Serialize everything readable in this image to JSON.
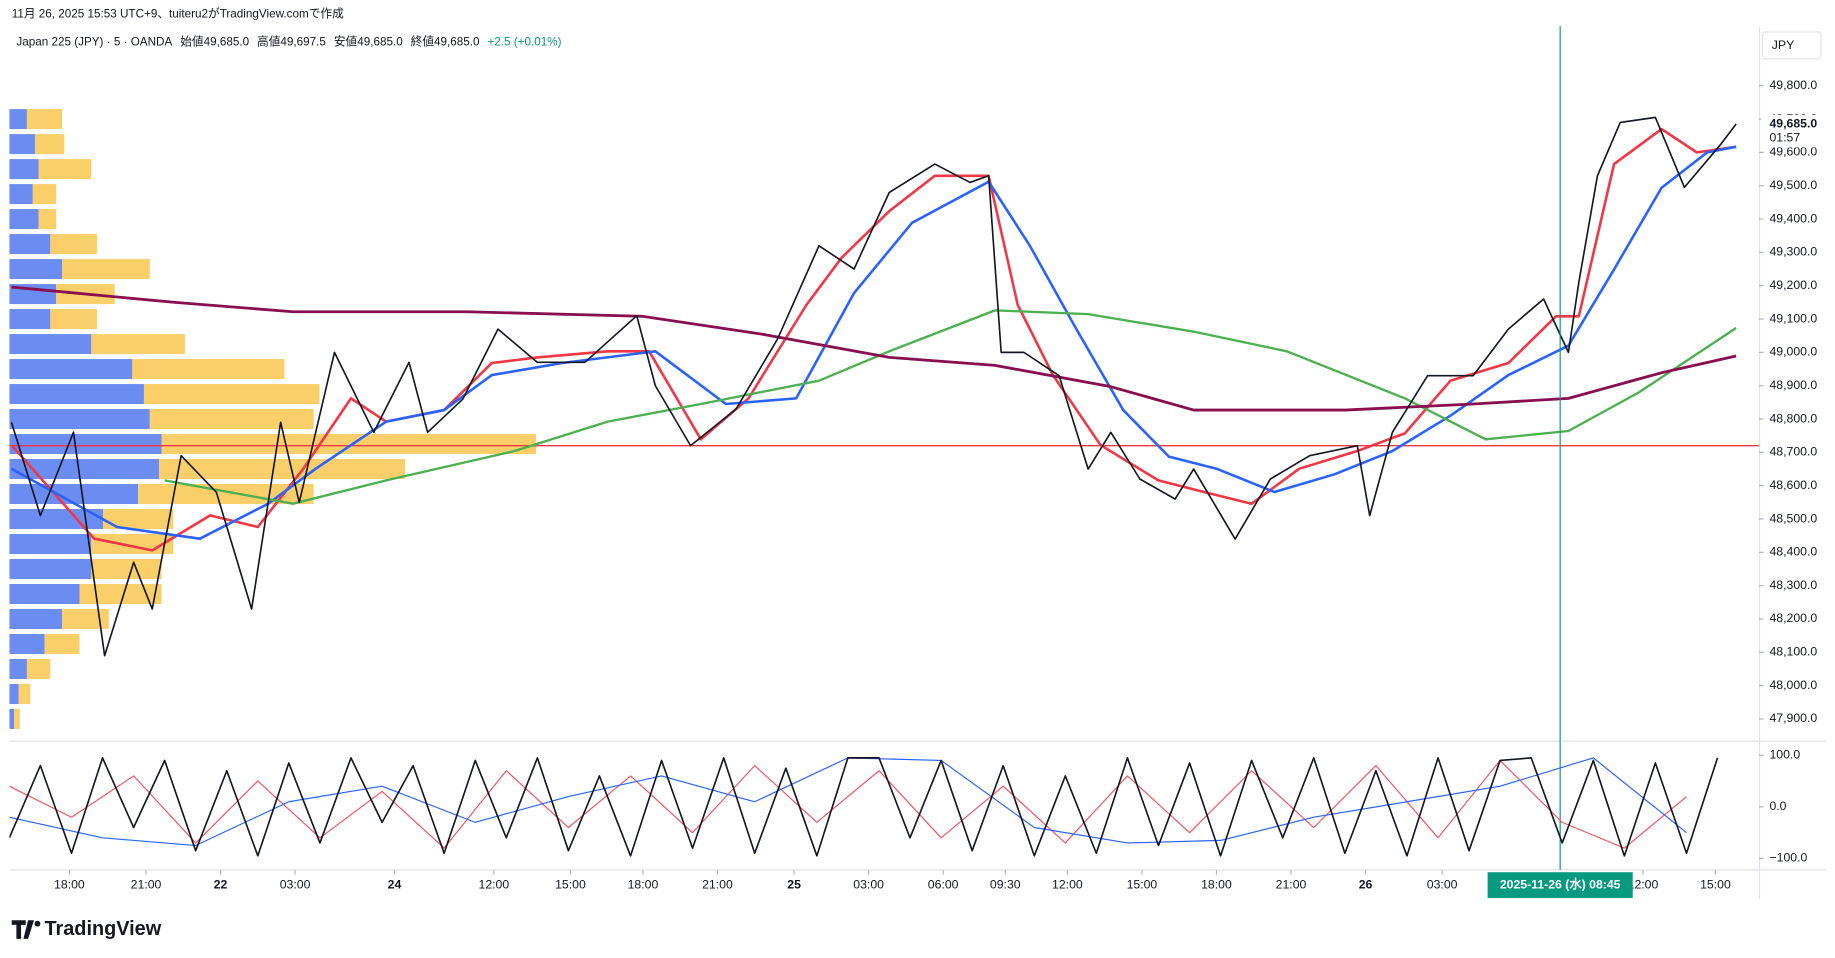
{
  "header": {
    "created": "11月 26, 2025 15:53 UTC+9、tuiteru2がTradingView.comで作成",
    "symbol": "Japan 225 (JPY) · 5 · OANDA",
    "ohlc": [
      "始値49,685.0",
      "高値49,697.5",
      "安値49,685.0",
      "終値49,685.0"
    ],
    "change": "+2.5 (+0.01%)"
  },
  "currency": "JPY",
  "logo": "TradingView",
  "chart_data": [
    {
      "type": "line",
      "xlim": [
        0,
        845
      ],
      "ylim": [
        47837,
        49979
      ],
      "xticks": [
        {
          "value": 29,
          "label": "18:00"
        },
        {
          "value": 66,
          "label": "21:00"
        },
        {
          "value": 102,
          "label": "22"
        },
        {
          "value": 138,
          "label": "03:00"
        },
        {
          "value": 186,
          "label": "24"
        },
        {
          "value": 234,
          "label": "12:00"
        },
        {
          "value": 271,
          "label": "15:00"
        },
        {
          "value": 306,
          "label": "18:00"
        },
        {
          "value": 342,
          "label": "21:00"
        },
        {
          "value": 379,
          "label": "25"
        },
        {
          "value": 415,
          "label": "03:00"
        },
        {
          "value": 451,
          "label": "06:00"
        },
        {
          "value": 481,
          "label": "09:30"
        },
        {
          "value": 511,
          "label": "12:00"
        },
        {
          "value": 547,
          "label": "15:00"
        },
        {
          "value": 583,
          "label": "18:00"
        },
        {
          "value": 619,
          "label": "21:00"
        },
        {
          "value": 655,
          "label": "26"
        },
        {
          "value": 692,
          "label": "03:00"
        },
        {
          "value": 789,
          "label": "12:00"
        },
        {
          "value": 824,
          "label": "15:00"
        }
      ],
      "yticks": [
        {
          "value": 47900,
          "label": "47,900.0"
        },
        {
          "value": 48000,
          "label": "48,000.0"
        },
        {
          "value": 48100,
          "label": "48,100.0"
        },
        {
          "value": 48200,
          "label": "48,200.0"
        },
        {
          "value": 48300,
          "label": "48,300.0"
        },
        {
          "value": 48400,
          "label": "48,400.0"
        },
        {
          "value": 48500,
          "label": "48,500.0"
        },
        {
          "value": 48600,
          "label": "48,600.0"
        },
        {
          "value": 48700,
          "label": "48,700.0"
        },
        {
          "value": 48800,
          "label": "48,800.0"
        },
        {
          "value": 48900,
          "label": "48,900.0"
        },
        {
          "value": 49000,
          "label": "49,000.0"
        },
        {
          "value": 49100,
          "label": "49,100.0"
        },
        {
          "value": 49200,
          "label": "49,200.0"
        },
        {
          "value": 49300,
          "label": "49,300.0"
        },
        {
          "value": 49400,
          "label": "49,400.0"
        },
        {
          "value": 49500,
          "label": "49,500.0"
        },
        {
          "value": 49600,
          "label": "49,600.0"
        },
        {
          "value": 49700,
          "label": "49,700.0"
        },
        {
          "value": 49800,
          "label": "49,800.0"
        }
      ],
      "series": [
        {
          "color": "#f23645",
          "width": 2.2,
          "x": [
            1,
            41,
            69,
            97,
            120,
            142,
            165,
            182,
            210,
            233,
            255,
            289,
            309,
            334,
            357,
            385,
            402,
            425,
            447,
            473,
            487,
            504,
            527,
            555,
            577,
            600,
            623,
            651,
            674,
            696,
            724,
            747,
            758,
            775,
            798,
            815,
            834
          ],
          "values": [
            48722,
            48441,
            48406,
            48511,
            48476,
            48651,
            48862,
            48792,
            48827,
            48968,
            48985,
            49003,
            49003,
            48739,
            48862,
            49143,
            49284,
            49424,
            49530,
            49530,
            49143,
            48932,
            48722,
            48616,
            48581,
            48546,
            48651,
            48704,
            48757,
            48915,
            48968,
            49108,
            49108,
            49565,
            49670,
            49600,
            49617
          ]
        },
        {
          "color": "#2962ff",
          "width": 2.2,
          "x": [
            1,
            52,
            92,
            125,
            148,
            182,
            210,
            233,
            267,
            312,
            346,
            380,
            408,
            436,
            473,
            493,
            515,
            538,
            560,
            583,
            611,
            640,
            668,
            696,
            724,
            753,
            775,
            798,
            820,
            834
          ],
          "values": [
            48651,
            48476,
            48441,
            48546,
            48651,
            48792,
            48827,
            48932,
            48968,
            49003,
            48845,
            48862,
            49178,
            49389,
            49512,
            49319,
            49073,
            48827,
            48687,
            48651,
            48581,
            48634,
            48704,
            48810,
            48932,
            49020,
            49249,
            49494,
            49600,
            49617
          ]
        },
        {
          "color": "#4caf50",
          "width": 2,
          "x": [
            75,
            137,
            182,
            244,
            289,
            334,
            391,
            425,
            476,
            521,
            572,
            617,
            674,
            713,
            753,
            787,
            834
          ],
          "values": [
            48616,
            48546,
            48616,
            48704,
            48792,
            48845,
            48915,
            49003,
            49126,
            49115,
            49062,
            49003,
            48862,
            48739,
            48764,
            48880,
            49073
          ]
        },
        {
          "color": "#880e4f",
          "width": 2.4,
          "x": [
            1,
            80,
            137,
            221,
            306,
            363,
            425,
            476,
            532,
            572,
            645,
            707,
            753,
            798,
            834
          ],
          "values": [
            49196,
            49150,
            49122,
            49122,
            49108,
            49055,
            48985,
            48961,
            48897,
            48827,
            48827,
            48845,
            48862,
            48939,
            48989
          ]
        },
        {
          "color": "#131722",
          "width": 1.4,
          "x": [
            1,
            15,
            31,
            46,
            60,
            69,
            83,
            100,
            117,
            131,
            140,
            157,
            176,
            193,
            202,
            219,
            236,
            255,
            278,
            303,
            312,
            329,
            351,
            371,
            391,
            408,
            425,
            447,
            464,
            473,
            479,
            490,
            507,
            521,
            532,
            546,
            563,
            572,
            592,
            609,
            628,
            651,
            657,
            668,
            685,
            707,
            724,
            741,
            753,
            758,
            767,
            778,
            795,
            809,
            826,
            834
          ],
          "values": [
            48790,
            48510,
            48760,
            48090,
            48370,
            48230,
            48690,
            48580,
            48230,
            48790,
            48550,
            49000,
            48760,
            48970,
            48760,
            48860,
            49070,
            48970,
            48970,
            49110,
            48900,
            48720,
            48830,
            49040,
            49320,
            49250,
            49480,
            49565,
            49510,
            49530,
            49000,
            49000,
            48930,
            48650,
            48760,
            48620,
            48560,
            48650,
            48440,
            48620,
            48690,
            48720,
            48510,
            48760,
            48930,
            48930,
            49070,
            49160,
            49000,
            49210,
            49530,
            49690,
            49705,
            49495,
            49620,
            49685
          ]
        }
      ],
      "hline": {
        "value": 48720,
        "color": "#f23645"
      },
      "last_price": {
        "value": 49685,
        "label": "49,685.0",
        "countdown": "01:57"
      },
      "crosshair": {
        "x": 749,
        "label": "2025-11-26 (水)  08:45",
        "color": "#089981"
      },
      "volume_profile": {
        "xlim": [
          0,
          500
        ],
        "levels": [
          49700,
          49625,
          49550,
          49475,
          49400,
          49325,
          49250,
          49175,
          49100,
          49025,
          48950,
          48875,
          48800,
          48725,
          48650,
          48575,
          48500,
          48425,
          48350,
          48275,
          48200,
          48125,
          48050,
          47975,
          47900
        ],
        "up": {
          "color": "#5b7ff0",
          "values": [
            15,
            22,
            25,
            20,
            25,
            35,
            45,
            40,
            35,
            70,
            105,
            115,
            120,
            130,
            128,
            110,
            80,
            70,
            70,
            60,
            45,
            30,
            15,
            8,
            4
          ]
        },
        "down": {
          "color": "#f9c74f",
          "values": [
            30,
            25,
            45,
            20,
            15,
            40,
            75,
            50,
            40,
            80,
            130,
            150,
            140,
            320,
            210,
            150,
            60,
            70,
            60,
            70,
            40,
            30,
            20,
            10,
            5
          ]
        }
      }
    },
    {
      "type": "line",
      "xlim": [
        0,
        845
      ],
      "ylim": [
        -120,
        123
      ],
      "yticks": [
        {
          "value": 100,
          "label": "100.0"
        },
        {
          "value": 0,
          "label": "0.0"
        },
        {
          "value": -100,
          "label": "−100.0"
        }
      ],
      "series": [
        {
          "color": "#f7525f",
          "width": 1,
          "x": [
            0,
            30,
            60,
            90,
            120,
            150,
            180,
            210,
            240,
            270,
            300,
            330,
            360,
            390,
            420,
            450,
            480,
            510,
            540,
            570,
            600,
            630,
            660,
            690,
            720,
            750,
            780,
            810
          ],
          "values": [
            40,
            -20,
            60,
            -70,
            50,
            -60,
            30,
            -80,
            70,
            -40,
            60,
            -50,
            80,
            -30,
            70,
            -60,
            40,
            -70,
            60,
            -50,
            70,
            -40,
            80,
            -60,
            90,
            -30,
            -80,
            20
          ]
        },
        {
          "color": "#2962ff",
          "width": 1,
          "x": [
            0,
            45,
            90,
            135,
            180,
            225,
            270,
            315,
            360,
            405,
            450,
            495,
            540,
            585,
            630,
            675,
            720,
            765,
            810
          ],
          "values": [
            -20,
            -60,
            -75,
            10,
            40,
            -30,
            20,
            60,
            10,
            95,
            90,
            -40,
            -70,
            -65,
            -20,
            10,
            40,
            95,
            -50
          ]
        },
        {
          "color": "#131722",
          "width": 1.4,
          "x": [
            0,
            15,
            30,
            45,
            60,
            75,
            90,
            105,
            120,
            135,
            150,
            165,
            180,
            195,
            210,
            225,
            240,
            255,
            270,
            285,
            300,
            315,
            330,
            345,
            360,
            375,
            390,
            405,
            420,
            435,
            450,
            465,
            480,
            495,
            510,
            525,
            540,
            555,
            570,
            585,
            600,
            615,
            630,
            645,
            660,
            675,
            690,
            705,
            720,
            735,
            750,
            765,
            780,
            795,
            810,
            825
          ],
          "values": [
            -60,
            80,
            -90,
            95,
            -40,
            90,
            -85,
            70,
            -95,
            85,
            -70,
            95,
            -30,
            80,
            -90,
            90,
            -60,
            95,
            -85,
            60,
            -95,
            90,
            -80,
            95,
            -90,
            75,
            -95,
            95,
            95,
            -60,
            90,
            -85,
            80,
            -95,
            60,
            -90,
            95,
            -75,
            85,
            -95,
            90,
            -60,
            95,
            -90,
            70,
            -95,
            95,
            -85,
            90,
            95,
            -70,
            90,
            -95,
            85,
            -90,
            95
          ]
        }
      ]
    }
  ]
}
